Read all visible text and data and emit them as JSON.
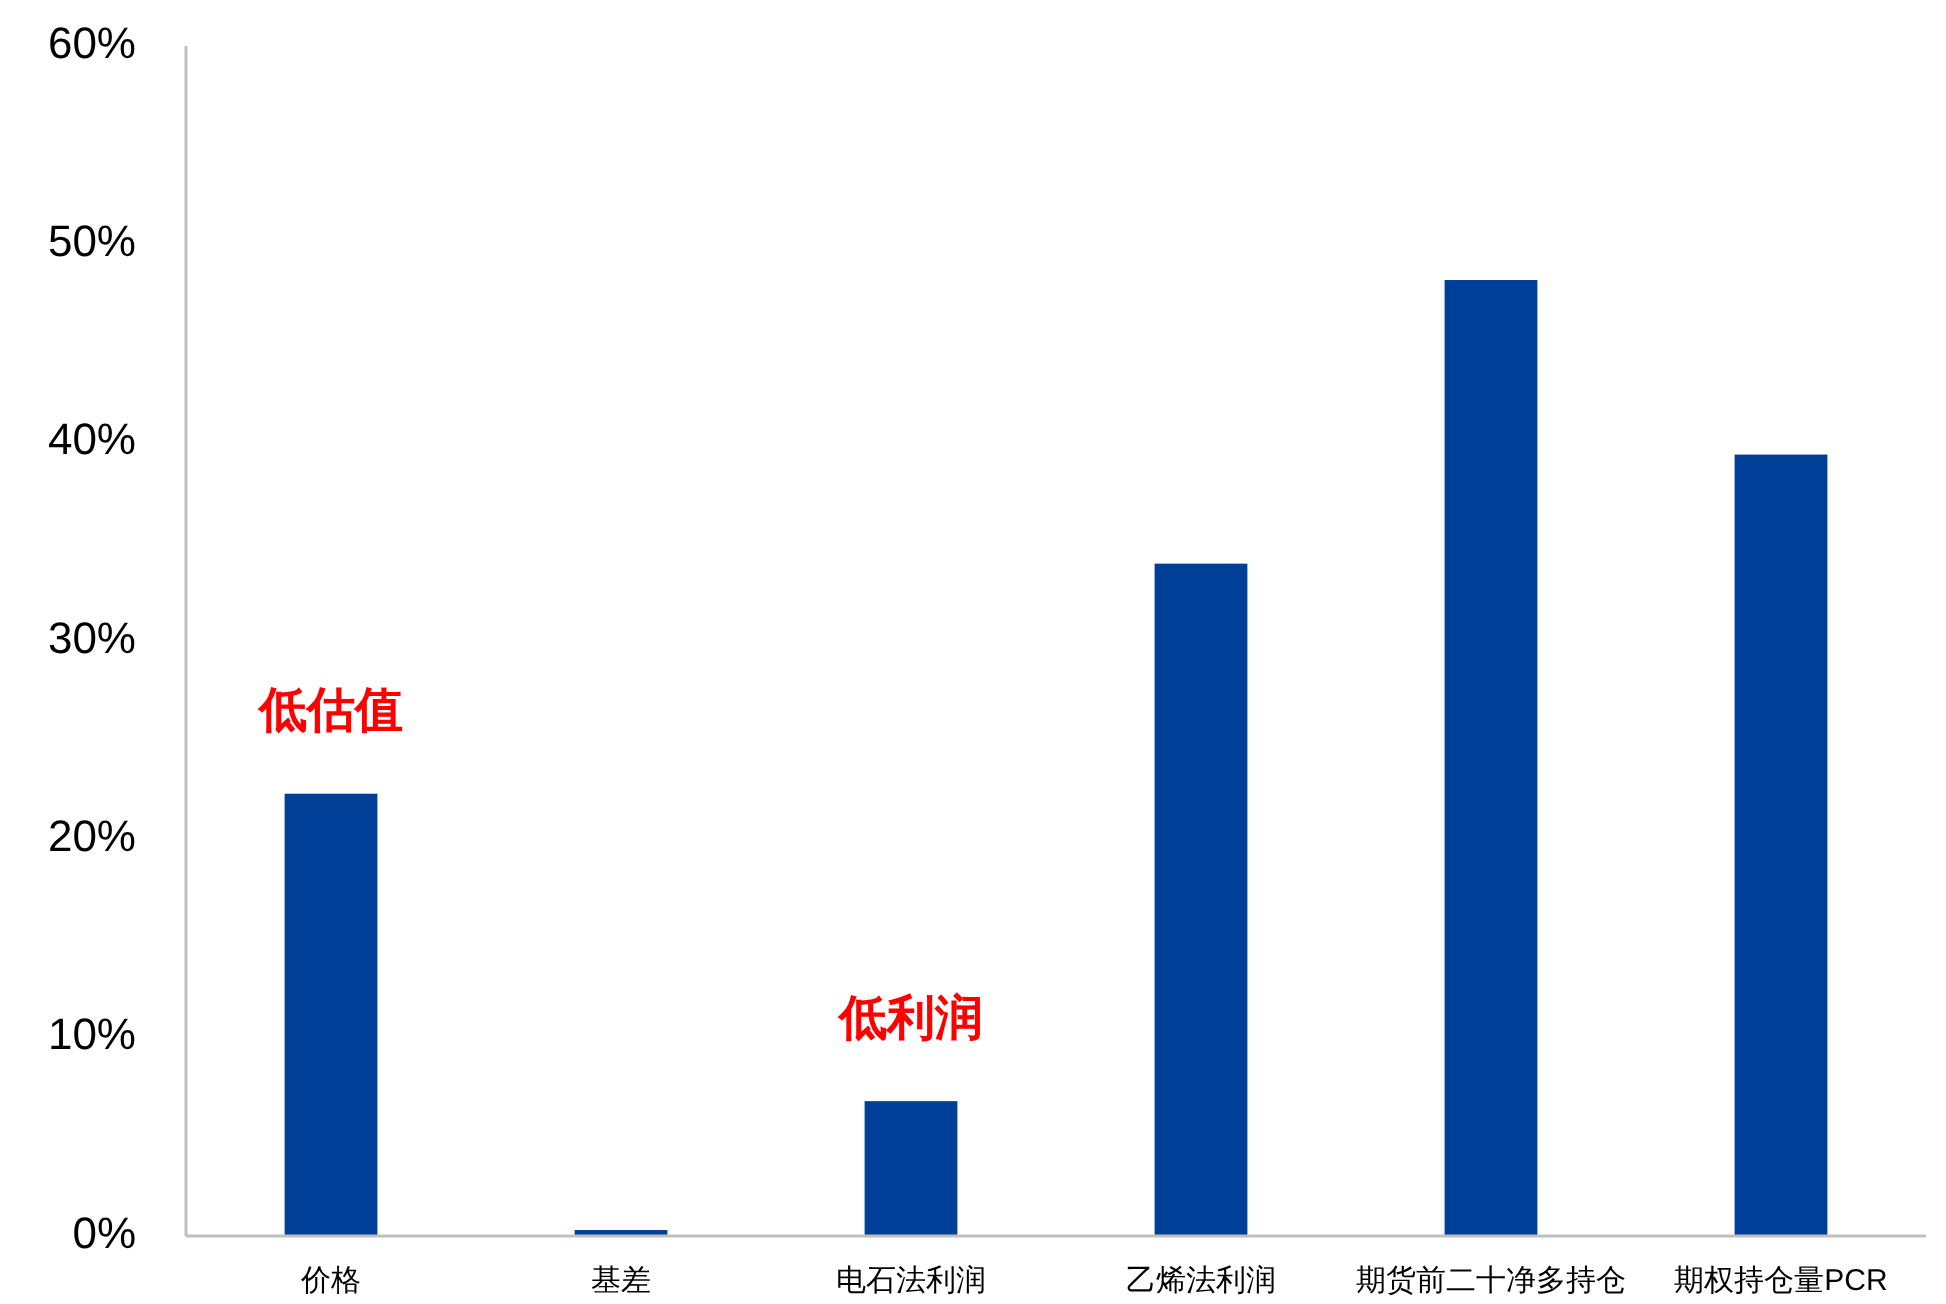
{
  "chart_data": {
    "type": "bar",
    "categories": [
      "价格",
      "基差",
      "电石法利润",
      "乙烯法利润",
      "期货前二十净多持仓",
      "期权持仓量PCR"
    ],
    "values": [
      22.3,
      0.3,
      6.8,
      33.9,
      48.2,
      39.4
    ],
    "color": "#003f97",
    "ylim": [
      0,
      60
    ],
    "yticks": [
      {
        "value": 0,
        "label": "0%"
      },
      {
        "value": 10,
        "label": "10%"
      },
      {
        "value": 20,
        "label": "20%"
      },
      {
        "value": 30,
        "label": "30%"
      },
      {
        "value": 40,
        "label": "40%"
      },
      {
        "value": 50,
        "label": "50%"
      },
      {
        "value": 60,
        "label": "60%"
      }
    ],
    "grid": false,
    "annotations": [
      {
        "text": "低估值",
        "x": "价格",
        "y": 22.3
      },
      {
        "text": "低利润",
        "x": "电石法利润",
        "y": 6.8
      }
    ]
  }
}
